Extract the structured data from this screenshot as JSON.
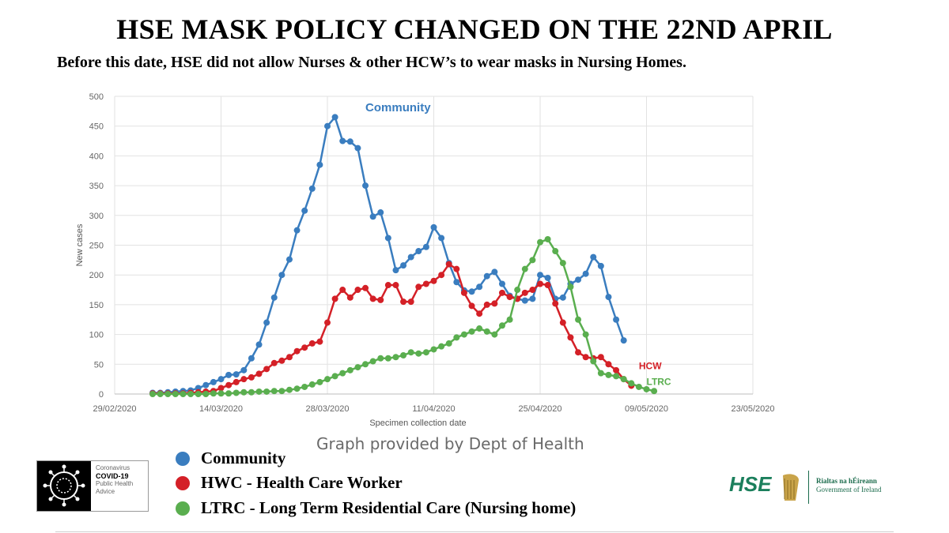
{
  "header": {
    "title": "HSE MASK POLICY CHANGED ON THE 22ND APRIL",
    "subtitle": "Before this date, HSE did not allow Nurses & other HCW’s to wear masks in Nursing Homes."
  },
  "credit": "Graph provided by Dept of Health",
  "legend": [
    {
      "label": "Community",
      "color": "#3a7dbf"
    },
    {
      "label": "HWC - Health Care Worker",
      "color": "#d42027"
    },
    {
      "label": "LTRC - Long Term Residential Care (Nursing home)",
      "color": "#5aae4f"
    }
  ],
  "logos": {
    "covid_lines": [
      "Coronavirus",
      "COVID-19",
      "Public Health",
      "Advice"
    ],
    "hse": "HSE",
    "gov_lines": [
      "Rialtas na hÉireann",
      "Government of Ireland"
    ]
  },
  "chart_data": {
    "type": "line",
    "xlabel": "Specimen collection date",
    "ylabel": "New cases",
    "ylim": [
      0,
      500
    ],
    "yticks": [
      0,
      50,
      100,
      150,
      200,
      250,
      300,
      350,
      400,
      450,
      500
    ],
    "xticks": [
      {
        "day": 0,
        "label": "29/02/2020"
      },
      {
        "day": 14,
        "label": "14/03/2020"
      },
      {
        "day": 28,
        "label": "28/03/2020"
      },
      {
        "day": 42,
        "label": "11/04/2020"
      },
      {
        "day": 56,
        "label": "25/04/2020"
      },
      {
        "day": 70,
        "label": "09/05/2020"
      },
      {
        "day": 84,
        "label": "23/05/2020"
      }
    ],
    "xlim": [
      0,
      84
    ],
    "start_day": 5,
    "series": [
      {
        "name": "Community",
        "color": "#3a7dbf",
        "label": "Community",
        "label_anchor": {
          "day": 33,
          "value": 475
        },
        "values": [
          2,
          2,
          3,
          4,
          5,
          6,
          10,
          15,
          20,
          25,
          32,
          33,
          40,
          60,
          83,
          120,
          162,
          200,
          226,
          275,
          308,
          345,
          385,
          450,
          465,
          425,
          424,
          413,
          350,
          298,
          305,
          262,
          208,
          216,
          230,
          240,
          247,
          280,
          262,
          220,
          188,
          174,
          172,
          180,
          198,
          205,
          185,
          165,
          160,
          157,
          160,
          200,
          195,
          160,
          162,
          185,
          192,
          202,
          230,
          215,
          163,
          125,
          90
        ],
        "end_day": 67
      },
      {
        "name": "HCW",
        "color": "#d42027",
        "label": "HCW",
        "label_anchor": {
          "day": 69,
          "value": 42
        },
        "values": [
          1,
          1,
          1,
          1,
          1,
          2,
          3,
          4,
          5,
          10,
          15,
          20,
          25,
          28,
          34,
          42,
          52,
          56,
          62,
          72,
          78,
          85,
          88,
          120,
          160,
          175,
          162,
          175,
          178,
          160,
          158,
          183,
          183,
          155,
          155,
          180,
          185,
          190,
          200,
          218,
          210,
          170,
          148,
          135,
          150,
          152,
          170,
          163,
          160,
          170,
          175,
          185,
          183,
          152,
          120,
          95,
          70,
          62,
          60,
          62,
          50,
          40,
          25,
          14
        ],
        "end_day": 68
      },
      {
        "name": "LTRC",
        "color": "#5aae4f",
        "label": "LTRC",
        "label_anchor": {
          "day": 70,
          "value": 15
        },
        "values": [
          0,
          0,
          0,
          0,
          0,
          0,
          0,
          0,
          1,
          1,
          1,
          2,
          3,
          3,
          4,
          4,
          5,
          5,
          7,
          9,
          12,
          16,
          20,
          25,
          30,
          35,
          40,
          45,
          50,
          55,
          60,
          60,
          62,
          65,
          70,
          68,
          70,
          75,
          80,
          85,
          95,
          100,
          105,
          110,
          105,
          100,
          115,
          125,
          175,
          210,
          225,
          255,
          260,
          240,
          220,
          180,
          125,
          100,
          55,
          35,
          32,
          30,
          25,
          18,
          12,
          8,
          5
        ],
        "end_day": 71
      }
    ]
  }
}
